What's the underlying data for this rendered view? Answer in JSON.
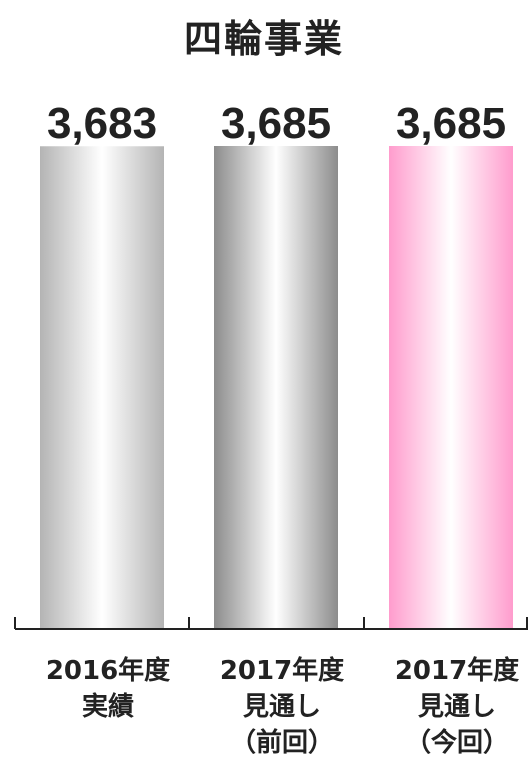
{
  "chart_data": {
    "type": "bar",
    "title": "四輪事業",
    "xlabel": "",
    "ylabel": "",
    "ylim": [
      0,
      3685
    ],
    "grid": false,
    "legend": "none",
    "categories": [
      [
        "2016年度",
        "実績"
      ],
      [
        "2017年度",
        "見通し",
        "（前回）"
      ],
      [
        "2017年度",
        "見通し",
        "（今回）"
      ]
    ],
    "values": [
      3683,
      3685,
      3685
    ],
    "value_labels": [
      "3,683",
      "3,685",
      "3,685"
    ],
    "bar_colors": [
      {
        "edge": "#b4b4b4",
        "center": "#ffffff"
      },
      {
        "edge": "#8c8c8c",
        "center": "#ffffff"
      },
      {
        "edge": "#ff9ccd",
        "center": "#ffffff"
      }
    ],
    "axis_color": "#222222"
  }
}
